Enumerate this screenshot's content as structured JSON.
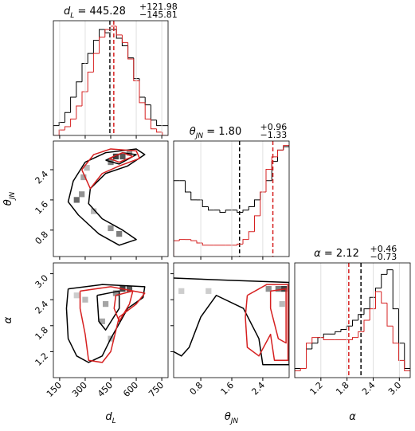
{
  "chart_data": [
    {
      "type": "histogram",
      "title": {
        "symbol": "d",
        "sub": "L",
        "text": " = 445.28",
        "upper": "+121.98",
        "lower": "−145.81"
      },
      "bins": [
        113,
        146.7,
        180.4,
        214.1,
        247.8,
        281.5,
        315.2,
        348.9,
        382.6,
        416.3,
        450,
        483.7,
        517.4,
        551.1,
        584.8,
        618.5,
        652.2,
        685.9,
        719.6,
        753.3,
        787
      ],
      "series": [
        {
          "color": "#000000",
          "median": 445.28,
          "values": [
            9,
            12,
            21,
            35,
            49,
            66,
            75,
            87,
            97,
            94,
            97,
            89,
            82,
            71,
            52,
            35,
            28,
            14,
            9,
            9
          ]
        },
        {
          "color": "#d62020",
          "median": 468,
          "values": [
            0,
            5,
            8,
            15,
            27,
            40,
            58,
            75,
            90,
            97,
            100,
            92,
            85,
            70,
            50,
            30,
            15,
            6,
            3,
            0
          ]
        }
      ],
      "xlim": [
        113,
        787
      ],
      "ylim": [
        0,
        105
      ],
      "xticks": [
        150,
        300,
        450,
        600,
        750
      ],
      "grid": true
    },
    {
      "type": "histogram",
      "title": {
        "symbol": "θ",
        "sub": "JN",
        "text": " = 1.80",
        "upper": "+0.96",
        "lower": "−1.33"
      },
      "bins": [
        0.1,
        0.249,
        0.398,
        0.547,
        0.696,
        0.845,
        0.994,
        1.143,
        1.292,
        1.441,
        1.59,
        1.739,
        1.888,
        2.037,
        2.186,
        2.335,
        2.484,
        2.633,
        2.782,
        2.931,
        3.08
      ],
      "series": [
        {
          "color": "#000000",
          "median": 1.8,
          "values": [
            67,
            67,
            57,
            50,
            50,
            44,
            41,
            41,
            39,
            41,
            41,
            39,
            41,
            44,
            50,
            57,
            67,
            84,
            94,
            97
          ]
        },
        {
          "color": "#d62020",
          "median": 2.66,
          "values": [
            14,
            15,
            15,
            14,
            12,
            10,
            10,
            10,
            10,
            10,
            10,
            11,
            15,
            22,
            36,
            57,
            77,
            88,
            94,
            98
          ]
        }
      ],
      "xlim": [
        0.1,
        3.08
      ],
      "ylim": [
        0,
        102
      ],
      "xticks": [
        0.8,
        1.6,
        2.4
      ],
      "grid": true
    },
    {
      "type": "histogram",
      "title": {
        "symbol": "α",
        "text": " = 2.12",
        "upper": "+0.46",
        "lower": "−0.73"
      },
      "xlabel": {
        "symbol": "α"
      },
      "bins": [
        0.6,
        0.7325,
        0.865,
        0.9975,
        1.13,
        1.2625,
        1.395,
        1.5275,
        1.66,
        1.7925,
        1.925,
        2.0575,
        2.19,
        2.3225,
        2.455,
        2.5875,
        2.72,
        2.8525,
        2.985,
        3.1175,
        3.25
      ],
      "series": [
        {
          "color": "#000000",
          "median": 2.12,
          "values": [
            8,
            8,
            25,
            30,
            35,
            38,
            38,
            40,
            42,
            45,
            50,
            55,
            60,
            70,
            78,
            90,
            94,
            60,
            30,
            8
          ]
        },
        {
          "color": "#d62020",
          "median": 1.84,
          "values": [
            6,
            8,
            30,
            35,
            35,
            33,
            33,
            33,
            33,
            33,
            35,
            40,
            50,
            60,
            75,
            65,
            45,
            30,
            15,
            6
          ]
        }
      ],
      "xlim": [
        0.6,
        3.25
      ],
      "ylim": [
        0,
        100
      ],
      "xticks": [
        1.2,
        1.8,
        2.4,
        {
          "value": 3,
          "label": "3.0"
        }
      ],
      "grid": true
    },
    {
      "type": "contour",
      "ylabel": {
        "symbol": "θ",
        "sub": "JN"
      },
      "xlim": [
        113,
        787
      ],
      "ylim": [
        0.1,
        3.16
      ],
      "xticks": [
        150,
        300,
        450,
        600,
        750
      ],
      "yticks": [
        0.8,
        1.6,
        2.4
      ],
      "cells": {
        "x": [
          480,
          520,
          450,
          560,
          250,
          280,
          290,
          500,
          450,
          350,
          310
        ],
        "y": [
          2.75,
          2.75,
          2.6,
          2.85,
          1.6,
          1.75,
          2.2,
          0.7,
          0.85,
          1.3,
          2.45
        ],
        "values": [
          0.9,
          0.8,
          0.6,
          0.5,
          0.7,
          0.5,
          0.4,
          0.6,
          0.5,
          0.3,
          0.3
        ]
      },
      "contours": [
        {
          "color": "#000000",
          "x": [
            300,
            420,
            600,
            650,
            550,
            420,
            330,
            320,
            400,
            520,
            600,
            500,
            380,
            260,
            200,
            230,
            300
          ],
          "y": [
            2.6,
            2.85,
            2.95,
            2.8,
            2.5,
            2.3,
            1.9,
            1.5,
            1.1,
            0.8,
            0.55,
            0.4,
            0.7,
            1.2,
            1.55,
            2.1,
            2.6
          ]
        },
        {
          "color": "#000000",
          "x": [
            420,
            520,
            600,
            500,
            420
          ],
          "y": [
            2.65,
            2.85,
            2.8,
            2.55,
            2.65
          ]
        },
        {
          "color": "#d62020",
          "x": [
            280,
            350,
            450,
            600,
            620,
            500,
            400,
            330,
            300,
            280
          ],
          "y": [
            2.4,
            2.8,
            2.95,
            2.9,
            2.7,
            2.5,
            2.3,
            1.9,
            2.2,
            2.4
          ]
        },
        {
          "color": "#d62020",
          "x": [
            440,
            520,
            580,
            500,
            440
          ],
          "y": [
            2.7,
            2.85,
            2.75,
            2.6,
            2.7
          ]
        }
      ]
    },
    {
      "type": "contour",
      "xlabel": {
        "symbol": "d",
        "sub": "L"
      },
      "ylabel": {
        "symbol": "α"
      },
      "xlim": [
        113,
        787
      ],
      "ylim": [
        0.6,
        3.25
      ],
      "xticks": [
        150,
        300,
        450,
        600,
        750
      ],
      "yticks": [
        1.2,
        1.8,
        2.4,
        {
          "value": 3,
          "label": "3.0"
        }
      ],
      "cells": {
        "x": [
          520,
          560,
          480,
          420,
          400,
          300,
          250,
          450
        ],
        "y": [
          2.65,
          2.65,
          2.55,
          2.3,
          1.9,
          2.4,
          2.5,
          1.5
        ],
        "values": [
          0.9,
          0.8,
          0.5,
          0.4,
          0.4,
          0.3,
          0.2,
          0.3
        ]
      },
      "contours": [
        {
          "color": "#000000",
          "x": [
            200,
            400,
            650,
            640,
            550,
            450,
            400,
            320,
            250,
            200,
            190,
            200
          ],
          "y": [
            2.65,
            2.75,
            2.7,
            2.45,
            2.2,
            1.5,
            1.1,
            0.95,
            1.1,
            1.5,
            2.2,
            2.65
          ]
        },
        {
          "color": "#000000",
          "x": [
            370,
            500,
            500,
            420,
            380,
            370
          ],
          "y": [
            2.5,
            2.6,
            2.2,
            1.7,
            1.9,
            2.5
          ]
        },
        {
          "color": "#d62020",
          "x": [
            270,
            450,
            650,
            600,
            500,
            450,
            400,
            320,
            300,
            270,
            270
          ],
          "y": [
            2.6,
            2.7,
            2.55,
            2.3,
            2.0,
            1.2,
            0.95,
            1.0,
            1.6,
            2.2,
            2.6
          ]
        },
        {
          "color": "#d62020",
          "x": [
            480,
            580,
            560,
            500,
            470,
            480
          ],
          "y": [
            2.5,
            2.6,
            2.3,
            1.9,
            2.2,
            2.5
          ]
        }
      ]
    },
    {
      "type": "contour",
      "xlabel": {
        "symbol": "θ",
        "sub": "JN"
      },
      "xlim": [
        0.1,
        3.08
      ],
      "ylim": [
        0.6,
        3.25
      ],
      "xticks": [
        0.8,
        1.6,
        2.4
      ],
      "yticks": [
        1.2,
        1.8,
        2.4,
        {
          "value": 3,
          "label": "3.0"
        }
      ],
      "cells": {
        "x": [
          2.95,
          2.8,
          2.55,
          0.3,
          1.0,
          2.9
        ],
        "y": [
          2.65,
          2.65,
          2.65,
          2.6,
          2.6,
          2.3
        ],
        "values": [
          0.9,
          0.6,
          0.5,
          0.2,
          0.2,
          0.3
        ]
      },
      "contours": [
        {
          "color": "#000000",
          "x": [
            0.1,
            1.5,
            3.08,
            3.08,
            2.4,
            2.3,
            1.9,
            1.2,
            0.8,
            0.5,
            0.3,
            0.1
          ],
          "y": [
            2.9,
            2.85,
            2.8,
            0.9,
            0.9,
            1.5,
            2.2,
            2.5,
            2.0,
            1.3,
            1.1,
            1.2
          ]
        },
        {
          "color": "#d62020",
          "x": [
            2.0,
            2.5,
            3.05,
            3.05,
            2.7,
            2.6,
            2.3,
            2.0,
            1.95,
            2.0
          ],
          "y": [
            2.5,
            2.75,
            2.75,
            1.0,
            1.0,
            1.6,
            1.1,
            1.3,
            2.0,
            2.5
          ]
        },
        {
          "color": "#d62020",
          "x": [
            2.6,
            3.0,
            3.0,
            2.8,
            2.6,
            2.6
          ],
          "y": [
            2.6,
            2.65,
            1.4,
            1.5,
            2.2,
            2.6
          ]
        }
      ]
    }
  ]
}
